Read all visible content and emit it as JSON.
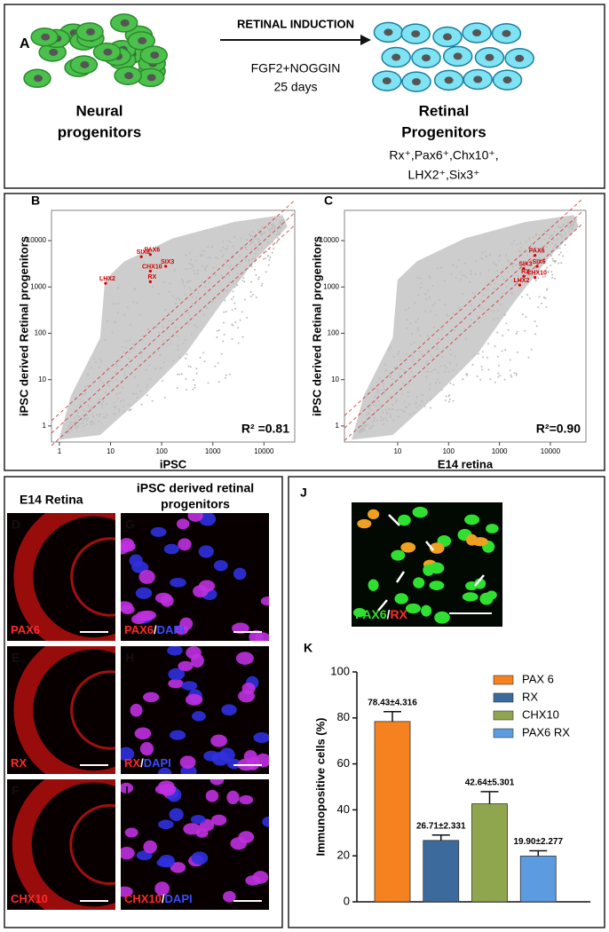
{
  "panel_a": {
    "label": "A",
    "arrow_label": "RETINAL INDUCTION",
    "condition": "FGF2+NOGGIN",
    "duration": "25 days",
    "source": [
      "Neural",
      "progenitors"
    ],
    "target": [
      "Retinal",
      "Progenitors"
    ],
    "markers": [
      "Rx⁺,Pax6⁺,Chx10⁺,",
      "LHX2⁺,Six3⁺"
    ]
  },
  "chart_data": [
    {
      "type": "scatter",
      "label": "B",
      "xlabel": "iPSC",
      "ylabel": "iPSC derived Retinal progenitors",
      "annotation": "R² =0.81",
      "log_scale": true,
      "xlim": [
        0.7,
        40000
      ],
      "ylim": [
        0.45,
        45000
      ],
      "xticks": [
        1,
        10,
        100,
        1000,
        10000
      ],
      "yticks": [
        1,
        10,
        100,
        1000,
        10000
      ],
      "color": "#d00000",
      "labels": [
        "SIX6",
        "PAX6",
        "CHX10",
        "SIX3",
        "LHX2",
        "RX"
      ],
      "x": [
        40,
        60,
        60,
        120,
        8,
        60
      ],
      "y": [
        4500,
        5000,
        2200,
        2800,
        1200,
        1300
      ]
    },
    {
      "type": "scatter",
      "label": "C",
      "xlabel": "E14 retina",
      "ylabel": "iPSC derived Retinal progenitors",
      "annotation": "R²=0.90",
      "log_scale": true,
      "xlim": [
        0.9,
        50000
      ],
      "ylim": [
        0.45,
        45000
      ],
      "xticks": [
        10,
        100,
        1000,
        10000
      ],
      "yticks": [
        1,
        10,
        100,
        1000,
        10000
      ],
      "color": "#d00000",
      "labels": [
        "PAX6",
        "SIX3",
        "SIX6",
        "RX",
        "CHX10",
        "LHX2"
      ],
      "x": [
        5000,
        3000,
        5500,
        3000,
        5000,
        2500
      ],
      "y": [
        4800,
        2500,
        2800,
        1700,
        1600,
        1100
      ]
    },
    {
      "type": "bar",
      "label": "K",
      "ylabel": "Immunopositive cells (%)",
      "ylim": [
        0,
        100
      ],
      "yticks": [
        0,
        20,
        40,
        60,
        80,
        100
      ],
      "series": [
        {
          "name": "PAX 6",
          "color": "#f5821f",
          "values": [
            78.43
          ],
          "errors": [
            4.316
          ],
          "value_labels": [
            "78.43±4.316"
          ]
        },
        {
          "name": "RX",
          "color": "#3d6a9c",
          "values": [
            26.71
          ],
          "errors": [
            2.331
          ],
          "value_labels": [
            "26.71±2.331"
          ]
        },
        {
          "name": "CHX10",
          "color": "#8fa64e",
          "values": [
            42.64
          ],
          "errors": [
            5.301
          ],
          "value_labels": [
            "42.64±5.301"
          ]
        },
        {
          "name": "PAX6 RX",
          "color": "#5c9be0",
          "values": [
            19.9
          ],
          "errors": [
            2.277
          ],
          "value_labels": [
            "19.90±2.277"
          ]
        }
      ]
    }
  ],
  "imaging": {
    "left_title": "E14 Retina",
    "right_title": [
      "iPSC derived retinal",
      "progenitors"
    ],
    "panels": [
      {
        "label": "D",
        "stain": [
          "PAX6"
        ]
      },
      {
        "label": "E",
        "stain": [
          "RX"
        ]
      },
      {
        "label": "F",
        "stain": [
          "CHX10"
        ]
      },
      {
        "label": "G",
        "stain": [
          "PAX6",
          "/",
          "DAPI"
        ]
      },
      {
        "label": "H",
        "stain": [
          "RX",
          "/",
          "DAPI"
        ]
      },
      {
        "label": "I",
        "stain": [
          "CHX10",
          "/",
          "DAPI"
        ]
      }
    ],
    "panel_j": {
      "label": "J",
      "stain": [
        "PAX6",
        "/",
        "RX"
      ]
    }
  }
}
